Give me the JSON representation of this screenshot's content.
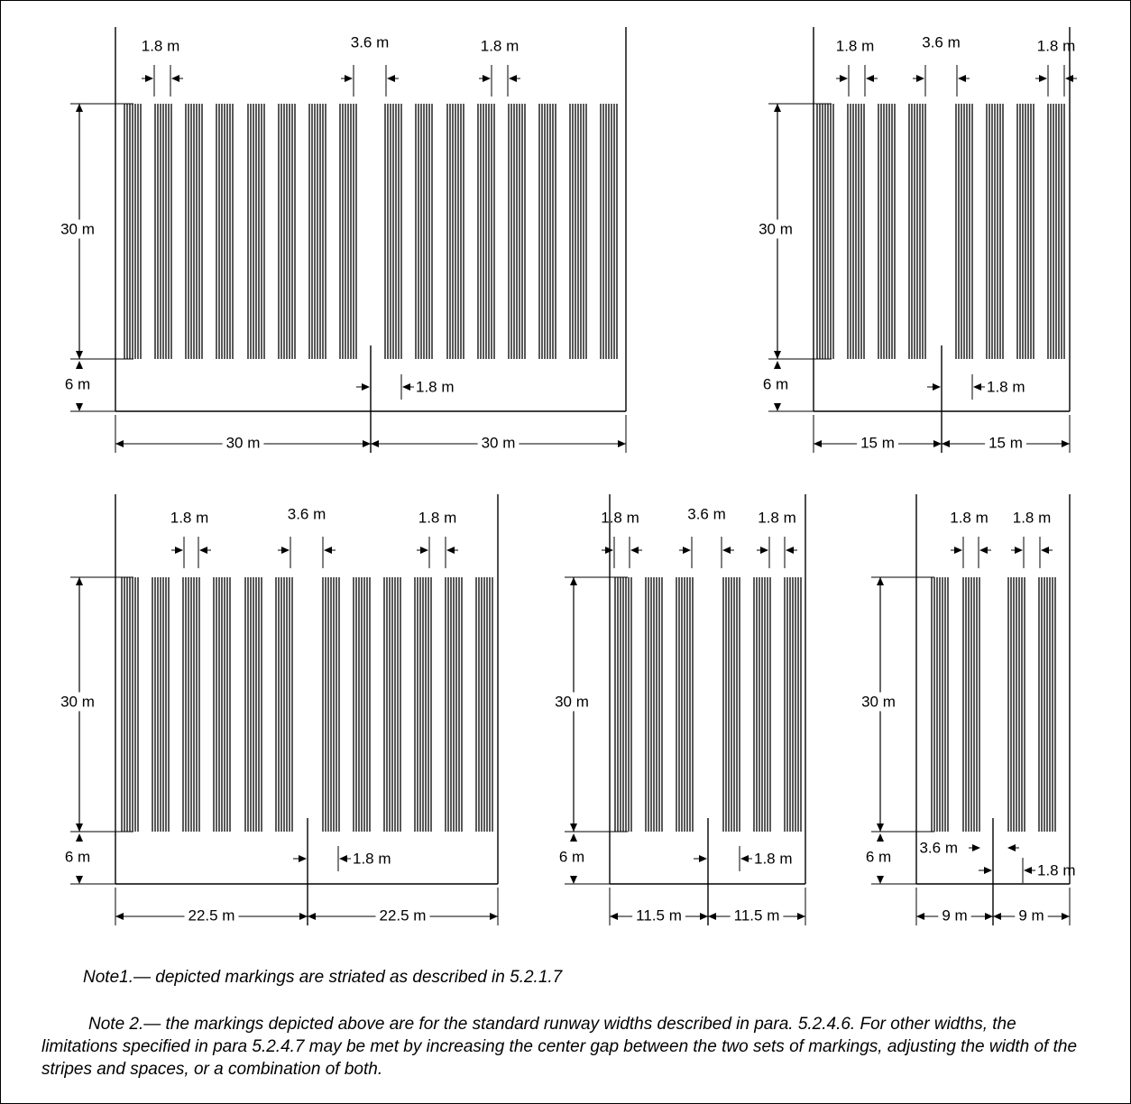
{
  "panels": [
    {
      "id": "panel-60m",
      "height_label": "30 m",
      "offset_label": "6 m",
      "stripe_width_labels": [
        "1.8 m",
        "1.8 m"
      ],
      "center_gap_label": "3.6 m",
      "center_offset_label": "1.8 m",
      "half_width_labels": [
        "30 m",
        "30 m"
      ],
      "stripes_per_side": 8
    },
    {
      "id": "panel-30m",
      "height_label": "30 m",
      "offset_label": "6 m",
      "stripe_width_labels": [
        "1.8 m",
        "1.8 m"
      ],
      "center_gap_label": "3.6 m",
      "center_offset_label": "1.8 m",
      "half_width_labels": [
        "15 m",
        "15 m"
      ],
      "stripes_per_side": 4
    },
    {
      "id": "panel-45m",
      "height_label": "30 m",
      "offset_label": "6 m",
      "stripe_width_labels": [
        "1.8 m",
        "1.8 m"
      ],
      "center_gap_label": "3.6 m",
      "center_offset_label": "1.8 m",
      "half_width_labels": [
        "22.5 m",
        "22.5 m"
      ],
      "stripes_per_side": 6
    },
    {
      "id": "panel-23m",
      "height_label": "30 m",
      "offset_label": "6 m",
      "stripe_width_labels": [
        "1.8 m",
        "1.8 m"
      ],
      "center_gap_label": "3.6 m",
      "center_offset_label": "1.8 m",
      "half_width_labels": [
        "11.5 m",
        "11.5 m"
      ],
      "stripes_per_side": 3
    },
    {
      "id": "panel-18m",
      "height_label": "30 m",
      "offset_label": "6 m",
      "stripe_width_labels": [
        "1.8 m",
        "1.8 m"
      ],
      "center_gap_label": "3.6 m",
      "center_offset_label": "1.8 m",
      "half_width_labels": [
        "9 m",
        "9 m"
      ],
      "stripes_per_side": 2
    }
  ],
  "notes": {
    "note1": "Note1.— depicted markings are striated as described in 5.2.1.7",
    "note2": "Note 2.— the markings depicted above are for the standard runway widths described in para. 5.2.4.6. For other widths, the limitations specified in para 5.2.4.7 may be met by increasing the center gap between the two sets of markings, adjusting the width of the stripes and spaces, or a combination of both."
  },
  "colors": {
    "ink": "#000000",
    "background": "#ffffff"
  }
}
